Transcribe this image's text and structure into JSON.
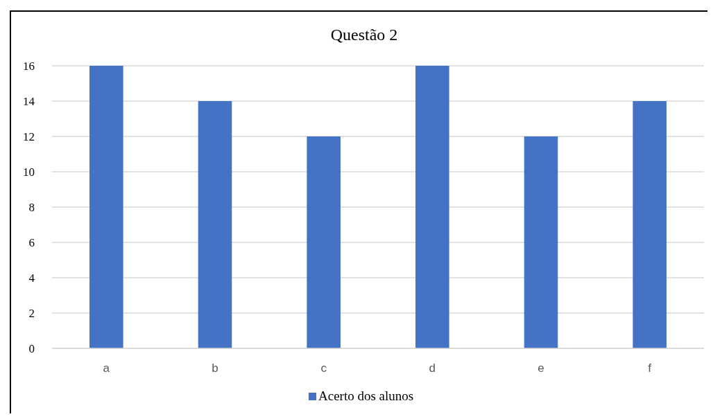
{
  "chart_data": {
    "type": "bar",
    "title": "Questão 2",
    "categories": [
      "a",
      "b",
      "c",
      "d",
      "e",
      "f"
    ],
    "series": [
      {
        "name": "Acerto dos alunos",
        "color": "#4472c4",
        "values": [
          16,
          14,
          12,
          16,
          12,
          14
        ]
      }
    ],
    "ylim": [
      0,
      16
    ],
    "yticks": [
      0,
      2,
      4,
      6,
      8,
      10,
      12,
      14,
      16
    ],
    "grid": "y",
    "legend": "bottom"
  }
}
